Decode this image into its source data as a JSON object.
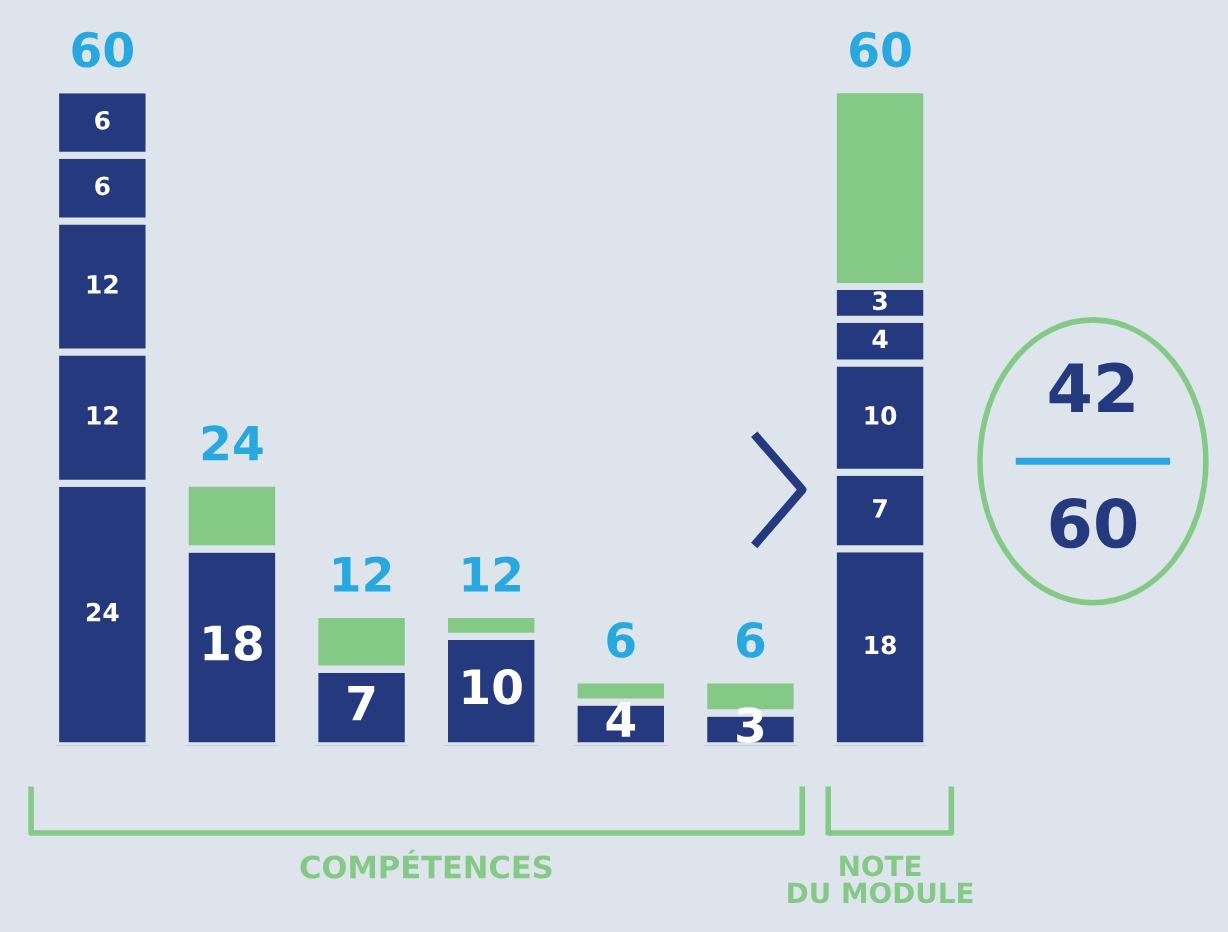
{
  "chart_data": {
    "type": "bar",
    "stacked": true,
    "categories": [
      null,
      null,
      null,
      null,
      null,
      null,
      null
    ],
    "series": [
      {
        "color": "#253a7e",
        "values": [
          24,
          18,
          7,
          10,
          4,
          3,
          18
        ],
        "value_labels": [
          "24",
          "18",
          "7",
          "10",
          "4",
          "3",
          "18"
        ]
      },
      {
        "color": "#253a7e",
        "values": [
          12,
          null,
          null,
          null,
          null,
          null,
          7
        ],
        "value_labels": [
          "12",
          null,
          null,
          null,
          null,
          null,
          "7"
        ]
      },
      {
        "color": "#253a7e",
        "values": [
          12,
          null,
          null,
          null,
          null,
          null,
          10
        ],
        "value_labels": [
          "12",
          null,
          null,
          null,
          null,
          null,
          "10"
        ]
      },
      {
        "color": "#253a7e",
        "values": [
          6,
          null,
          null,
          null,
          null,
          null,
          4
        ],
        "value_labels": [
          "6",
          null,
          null,
          null,
          null,
          null,
          "4"
        ]
      },
      {
        "color": "#253a7e",
        "values": [
          6,
          null,
          null,
          null,
          null,
          null,
          3
        ],
        "value_labels": [
          "6",
          null,
          null,
          null,
          null,
          null,
          "3"
        ]
      },
      {
        "color": "#84c985",
        "values": [
          null,
          6,
          5,
          2,
          2,
          3,
          18
        ],
        "value_labels": [
          null,
          null,
          null,
          null,
          null,
          null,
          null
        ]
      }
    ],
    "totals": [
      "60",
      "24",
      "12",
      "12",
      "6",
      "6",
      "60"
    ],
    "annotations": [
      "COMPÉTENCES",
      "NOTE\nDU MODULE",
      "42",
      "60"
    ]
  }
}
